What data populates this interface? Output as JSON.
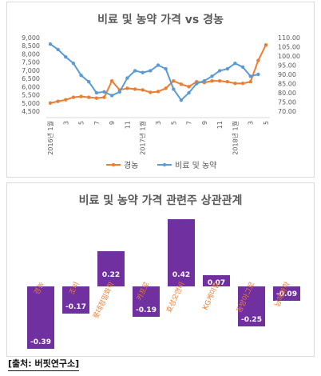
{
  "source": "[출처: 버핏연구소]",
  "chart_data": [
    {
      "type": "line",
      "title": "비료 및 농약 가격 vs 경농",
      "x": [
        "2016년 1월",
        "2",
        "3",
        "4",
        "5",
        "6",
        "7",
        "8",
        "9",
        "10",
        "11",
        "12",
        "2017년 1월",
        "2",
        "3",
        "4",
        "5",
        "6",
        "7",
        "8",
        "9",
        "10",
        "11",
        "12",
        "2018년 1월",
        "2",
        "3",
        "4",
        "5"
      ],
      "x_tick_labels": [
        "2016년 1월",
        "3",
        "5",
        "7",
        "9",
        "11",
        "2017년 1월",
        "3",
        "5",
        "7",
        "9",
        "11",
        "2018년 1월",
        "3",
        "5"
      ],
      "series": [
        {
          "name": "경농",
          "axis": "left",
          "color": "#ED7D31",
          "values": [
            5000,
            5100,
            5200,
            5350,
            5400,
            5350,
            5300,
            5350,
            6350,
            5800,
            5900,
            5850,
            5800,
            5650,
            5700,
            5900,
            6350,
            6150,
            6000,
            6300,
            6250,
            6350,
            6350,
            6300,
            6200,
            6200,
            6300,
            7600,
            8550
          ]
        },
        {
          "name": "비료 및 농약",
          "axis": "right",
          "color": "#5B9BD5",
          "values": [
            106.5,
            103.5,
            99.5,
            96,
            89.5,
            86,
            80,
            80.5,
            78.5,
            80.5,
            88,
            92,
            91,
            92,
            95,
            93,
            82,
            76,
            80,
            85,
            86.5,
            89,
            92,
            93,
            96,
            94,
            89,
            90,
            null
          ]
        }
      ],
      "yleft_ticks": [
        "4,500",
        "5,000",
        "5,500",
        "6,000",
        "6,500",
        "7,000",
        "7,500",
        "8,000",
        "8,500",
        "9,000"
      ],
      "yleft_range": [
        4500,
        9000
      ],
      "yright_ticks": [
        "70.00",
        "75.00",
        "80.00",
        "85.00",
        "90.00",
        "95.00",
        "100.00",
        "105.00",
        "110.00"
      ],
      "yright_range": [
        70,
        110
      ],
      "grid": false,
      "legend": "bottom"
    },
    {
      "type": "bar",
      "title": "비료 및 농약 가격 관련주 상관관계",
      "categories": [
        "경농",
        "조비",
        "롯데정밀화학",
        "카프로",
        "효성오앤비",
        "KG케미칼",
        "동방아그로",
        "남해화학"
      ],
      "values": [
        -0.39,
        -0.17,
        0.22,
        -0.19,
        0.42,
        0.07,
        -0.25,
        -0.09
      ],
      "value_labels": [
        "-0.39",
        "-0.17",
        "0.22",
        "-0.19",
        "0.42",
        "0.07",
        "-0.25",
        "-0.09"
      ],
      "color": "#7030A0",
      "label_color": "#ED7D31",
      "grid": false,
      "legend": "none"
    }
  ]
}
